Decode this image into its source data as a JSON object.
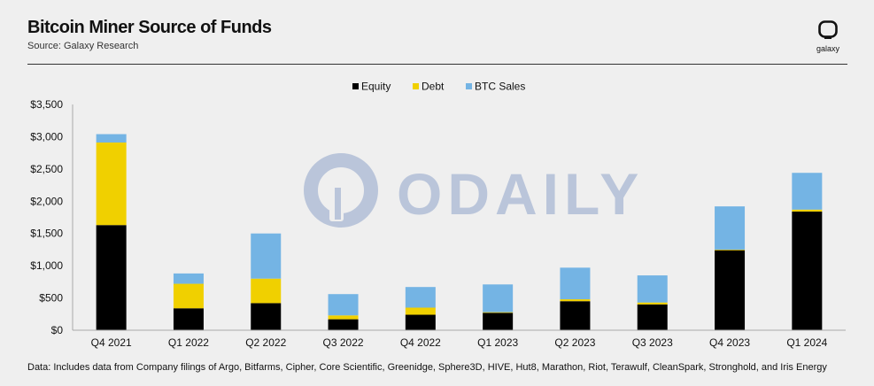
{
  "header": {
    "title": "Bitcoin Miner Source of Funds",
    "subtitle": "Source: Galaxy Research",
    "logo_text": "galaxy"
  },
  "watermark": "ODAILY",
  "footnote": "Data: Includes data from Company filings of Argo, Bitfarms, Cipher, Core Scientific, Greenidge, Sphere3D, HIVE, Hut8, Marathon, Riot, Terawulf, CleanSpark, Stronghold, and Iris Energy",
  "chart_data": {
    "type": "bar",
    "stacked": true,
    "categories": [
      "Q4 2021",
      "Q1 2022",
      "Q2 2022",
      "Q3 2022",
      "Q4 2022",
      "Q1 2023",
      "Q2 2023",
      "Q3 2023",
      "Q4 2023",
      "Q1 2024"
    ],
    "series": [
      {
        "name": "Equity",
        "color": "#000000",
        "values": [
          1630,
          340,
          420,
          170,
          240,
          270,
          450,
          400,
          1240,
          1840
        ]
      },
      {
        "name": "Debt",
        "color": "#f0d000",
        "values": [
          1280,
          380,
          380,
          60,
          110,
          10,
          30,
          30,
          10,
          30
        ]
      },
      {
        "name": "BTC Sales",
        "color": "#74b4e4",
        "values": [
          130,
          160,
          700,
          330,
          320,
          430,
          490,
          420,
          670,
          570
        ]
      }
    ],
    "yticks": [
      "$0",
      "$500",
      "$1,000",
      "$1,500",
      "$2,000",
      "$2,500",
      "$3,000",
      "$3,500"
    ],
    "ylim": [
      0,
      3500
    ],
    "grid": false,
    "legend_position": "top-center"
  }
}
